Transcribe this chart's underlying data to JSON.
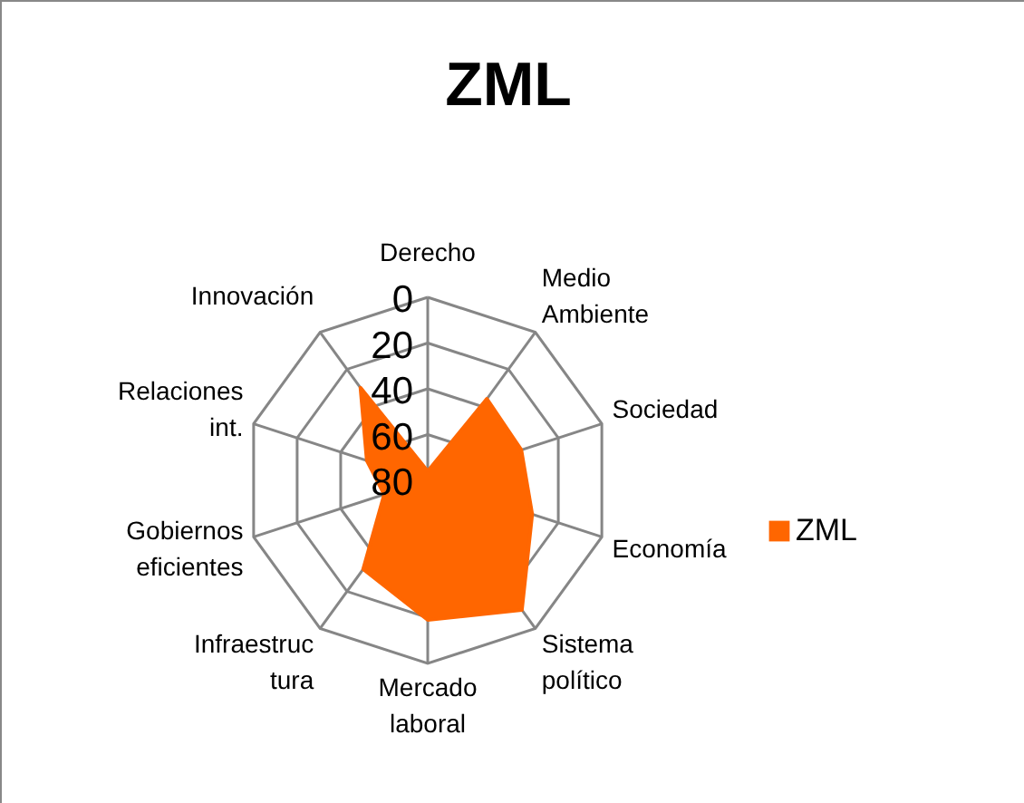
{
  "chart_data": {
    "type": "radar",
    "title": "ZML",
    "categories": [
      "Derecho",
      "Medio Ambiente",
      "Sociedad",
      "Economía",
      "Sistema político",
      "Mercado laboral",
      "Infraestructura",
      "Gobiernos eficientes",
      "Relaciones int.",
      "Innovación"
    ],
    "series": [
      {
        "name": "ZML",
        "color": "#ff6600",
        "values": [
          76,
          36,
          37,
          32,
          10,
          19,
          32,
          60,
          52,
          30
        ]
      }
    ],
    "ylim": [
      80,
      0
    ],
    "yticks": [
      0,
      20,
      40,
      60,
      80
    ],
    "grid": true,
    "legend": "right"
  }
}
